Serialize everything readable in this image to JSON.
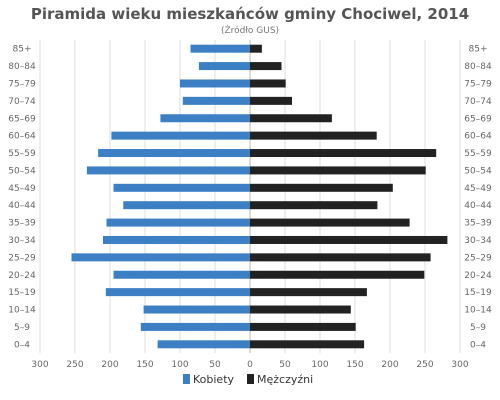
{
  "chart_data": {
    "type": "bar",
    "orientation": "horizontal-population-pyramid",
    "title": "Piramida wieku mieszkańców gminy Chociwel, 2014",
    "subtitle": "(Źródło  GUS)",
    "categories": [
      "85+",
      "80–84",
      "75–79",
      "70–74",
      "65–69",
      "60–64",
      "55–59",
      "50–54",
      "45–49",
      "40–44",
      "35–39",
      "30–34",
      "25–29",
      "20–24",
      "15–19",
      "10–14",
      "5–9",
      "0–4"
    ],
    "series": [
      {
        "name": "Kobiety",
        "color": "#3d7fc4",
        "values": [
          85,
          73,
          100,
          96,
          128,
          198,
          217,
          233,
          195,
          181,
          205,
          210,
          255,
          195,
          206,
          152,
          156,
          132
        ]
      },
      {
        "name": "Mężczyźni",
        "color": "#222222",
        "values": [
          17,
          45,
          51,
          60,
          117,
          181,
          266,
          251,
          204,
          182,
          228,
          282,
          258,
          249,
          167,
          144,
          151,
          163
        ]
      }
    ],
    "x_ticks": [
      "300",
      "250",
      "200",
      "150",
      "100",
      "50",
      "0",
      "50",
      "100",
      "150",
      "200",
      "250",
      "300"
    ],
    "xlim": [
      -300,
      300
    ],
    "grid": true,
    "legend_position": "bottom-center"
  }
}
